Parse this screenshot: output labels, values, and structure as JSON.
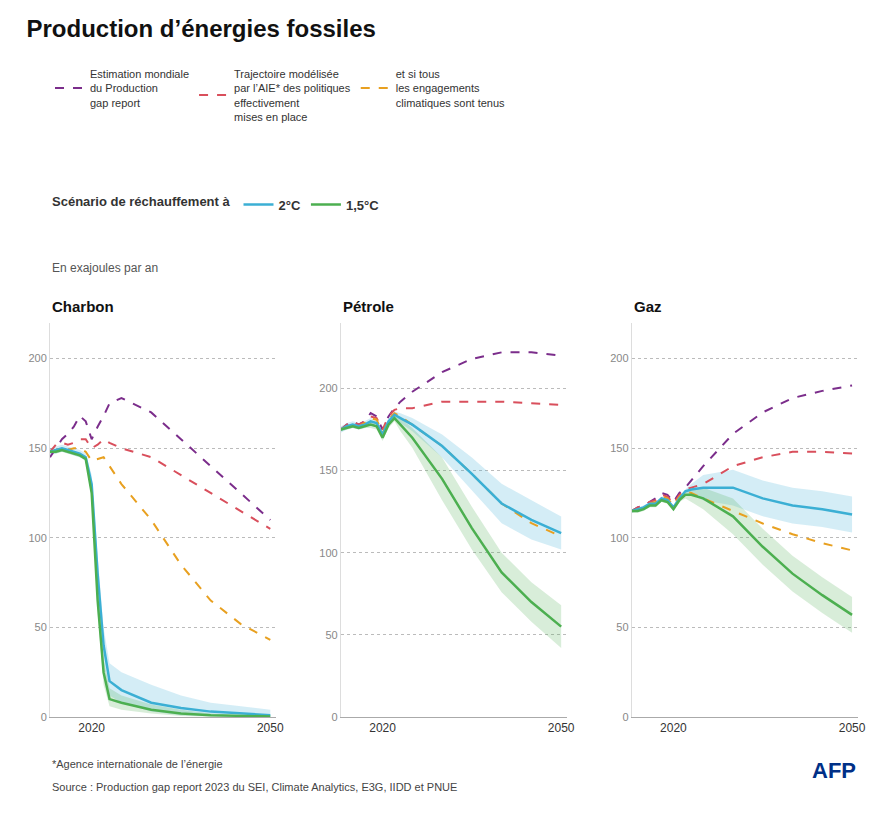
{
  "title": "Production d’énergies fossiles",
  "subtitle": "Scénario de réchauffement à",
  "ylabel": "En exajoules par an",
  "annotations": [
    {
      "text": "*Agence internationale de l’énergie"
    },
    {
      "text": "Source : Production gap report 2023 du SEI, Climate Analytics, E3G, IIDD et PNUE"
    },
    {
      "text": "AFP",
      "color": "#003087"
    }
  ],
  "chart_data": [
    {
      "type": "line",
      "title": "Charbon",
      "x": [
        2013,
        2014,
        2015,
        2016,
        2017,
        2018,
        2019,
        2020,
        2021,
        2022,
        2023,
        2025,
        2030,
        2035,
        2040,
        2045,
        2050
      ],
      "xlim": [
        2013,
        2051
      ],
      "xticks": [
        2020,
        2050
      ],
      "ylim": [
        0,
        220
      ],
      "yticks": [
        0,
        50,
        100,
        150,
        200
      ],
      "grid": true,
      "series": [
        {
          "name": "Estimation mondiale\ndu Production\ngap report",
          "color": "#7B2D8B",
          "line_style": "dashed",
          "values": [
            145,
            150,
            155,
            158,
            162,
            168,
            165,
            155,
            162,
            168,
            175,
            178,
            170,
            155,
            140,
            125,
            110
          ]
        },
        {
          "name": "Trajectoire modélisée\npar l’AIE* des politiques\neffectivement\nmises en place",
          "color": "#D94F5C",
          "line_style": "dashed",
          "values": [
            148,
            152,
            153,
            152,
            153,
            155,
            155,
            150,
            152,
            155,
            153,
            150,
            145,
            135,
            125,
            115,
            105
          ]
        },
        {
          "name": "et si tous\nles engagements\nclimatiques sont tenus",
          "color": "#E8A020",
          "line_style": "dashed",
          "values": [
            148,
            149,
            150,
            149,
            150,
            150,
            148,
            143,
            144,
            145,
            140,
            130,
            110,
            85,
            65,
            52,
            43
          ]
        },
        {
          "name": "2°C",
          "color": "#3BAFD4",
          "line_style": "solid",
          "values": [
            148,
            149,
            150,
            149,
            148,
            147,
            145,
            130,
            80,
            40,
            20,
            15,
            8,
            5,
            3,
            2,
            1
          ],
          "lower": [
            146,
            147,
            148,
            147,
            146,
            145,
            143,
            125,
            70,
            30,
            12,
            8,
            3,
            1,
            0.5,
            0.2,
            0.1
          ],
          "upper": [
            150,
            151,
            152,
            151,
            150,
            149,
            147,
            135,
            90,
            50,
            30,
            25,
            18,
            12,
            8,
            6,
            4
          ]
        },
        {
          "name": "1,5°C",
          "color": "#4CAF50",
          "line_style": "solid",
          "values": [
            148,
            148,
            149,
            148,
            147,
            146,
            144,
            125,
            65,
            25,
            10,
            8,
            4,
            2,
            1,
            0.5,
            0.3
          ],
          "lower": [
            147,
            147,
            148,
            147,
            146,
            145,
            143,
            122,
            58,
            18,
            6,
            4,
            2,
            0.5,
            0.2,
            0.1,
            0.05
          ],
          "upper": [
            149,
            149,
            150,
            149,
            148,
            147,
            145,
            128,
            70,
            32,
            16,
            12,
            7,
            4,
            2,
            1,
            0.5
          ]
        }
      ]
    },
    {
      "type": "line",
      "title": "Pétrole",
      "x": [
        2013,
        2014,
        2015,
        2016,
        2017,
        2018,
        2019,
        2020,
        2021,
        2022,
        2023,
        2025,
        2030,
        2035,
        2040,
        2045,
        2050
      ],
      "xlim": [
        2013,
        2051
      ],
      "xticks": [
        2020,
        2050
      ],
      "ylim": [
        0,
        240
      ],
      "yticks": [
        0,
        50,
        100,
        150,
        200
      ],
      "grid": true,
      "series": [
        {
          "name": "Estimation mondiale\ndu Production\ngap report",
          "color": "#7B2D8B",
          "line_style": "dashed",
          "values": [
            175,
            178,
            180,
            178,
            180,
            185,
            183,
            175,
            183,
            188,
            192,
            198,
            210,
            218,
            222,
            222,
            220
          ]
        },
        {
          "name": "Trajectoire modélisée\npar l’AIE* des politiques\neffectivement\nmises en place",
          "color": "#D94F5C",
          "line_style": "dashed",
          "values": [
            175,
            178,
            180,
            178,
            180,
            183,
            182,
            175,
            183,
            187,
            188,
            188,
            192,
            192,
            192,
            191,
            190
          ]
        },
        {
          "name": "et si tous\nles engagements\nclimatiques sont tenus",
          "color": "#E8A020",
          "line_style": "dashed",
          "values": [
            175,
            177,
            178,
            177,
            179,
            182,
            181,
            173,
            181,
            185,
            183,
            178,
            165,
            148,
            130,
            118,
            110
          ]
        },
        {
          "name": "2°C",
          "color": "#3BAFD4",
          "line_style": "solid",
          "values": [
            175,
            177,
            178,
            177,
            178,
            180,
            179,
            172,
            180,
            184,
            182,
            178,
            165,
            148,
            130,
            120,
            112
          ],
          "lower": [
            173,
            175,
            176,
            175,
            176,
            178,
            177,
            170,
            178,
            182,
            179,
            174,
            158,
            138,
            118,
            108,
            102
          ],
          "upper": [
            177,
            179,
            180,
            179,
            180,
            182,
            181,
            174,
            182,
            186,
            185,
            182,
            172,
            158,
            142,
            132,
            122
          ]
        },
        {
          "name": "1,5°C",
          "color": "#4CAF50",
          "line_style": "solid",
          "values": [
            175,
            176,
            177,
            176,
            177,
            178,
            177,
            170,
            178,
            182,
            178,
            170,
            145,
            115,
            88,
            70,
            55
          ],
          "lower": [
            174,
            175,
            176,
            175,
            176,
            176,
            175,
            168,
            176,
            180,
            174,
            164,
            132,
            102,
            76,
            58,
            42
          ],
          "upper": [
            176,
            177,
            178,
            177,
            178,
            180,
            179,
            172,
            180,
            184,
            182,
            176,
            158,
            128,
            100,
            82,
            68
          ]
        }
      ]
    },
    {
      "type": "line",
      "title": "Gaz",
      "x": [
        2013,
        2014,
        2015,
        2016,
        2017,
        2018,
        2019,
        2020,
        2021,
        2022,
        2023,
        2025,
        2030,
        2035,
        2040,
        2045,
        2050
      ],
      "xlim": [
        2013,
        2051
      ],
      "xticks": [
        2020,
        2050
      ],
      "ylim": [
        0,
        220
      ],
      "yticks": [
        0,
        50,
        100,
        150,
        200
      ],
      "grid": true,
      "series": [
        {
          "name": "Estimation mondiale\ndu Production\ngap report",
          "color": "#7B2D8B",
          "line_style": "dashed",
          "values": [
            115,
            117,
            118,
            120,
            122,
            125,
            124,
            120,
            125,
            128,
            132,
            140,
            158,
            170,
            178,
            182,
            185
          ]
        },
        {
          "name": "Trajectoire modélisée\npar l’AIE* des politiques\neffectivement\nmises en place",
          "color": "#D94F5C",
          "line_style": "dashed",
          "values": [
            115,
            117,
            118,
            120,
            121,
            124,
            123,
            119,
            124,
            127,
            128,
            130,
            140,
            145,
            148,
            148,
            147
          ]
        },
        {
          "name": "et si tous\nles engagements\nclimatiques sont tenus",
          "color": "#E8A020",
          "line_style": "dashed",
          "values": [
            115,
            116,
            117,
            119,
            120,
            123,
            122,
            118,
            123,
            126,
            125,
            122,
            115,
            108,
            102,
            97,
            93
          ]
        },
        {
          "name": "2°C",
          "color": "#3BAFD4",
          "line_style": "solid",
          "values": [
            115,
            116,
            117,
            119,
            119,
            122,
            121,
            117,
            122,
            126,
            127,
            128,
            128,
            122,
            118,
            116,
            113
          ],
          "lower": [
            114,
            115,
            116,
            118,
            118,
            121,
            120,
            116,
            121,
            125,
            124,
            121,
            118,
            112,
            108,
            106,
            103
          ],
          "upper": [
            116,
            117,
            118,
            120,
            120,
            123,
            122,
            118,
            123,
            127,
            130,
            135,
            138,
            132,
            128,
            126,
            123
          ]
        },
        {
          "name": "1,5°C",
          "color": "#4CAF50",
          "line_style": "solid",
          "values": [
            115,
            115,
            116,
            118,
            118,
            121,
            120,
            116,
            121,
            124,
            124,
            122,
            112,
            95,
            80,
            68,
            57
          ],
          "lower": [
            114,
            114,
            115,
            117,
            117,
            120,
            119,
            115,
            120,
            122,
            120,
            116,
            102,
            85,
            70,
            58,
            47
          ],
          "upper": [
            115,
            116,
            117,
            119,
            119,
            122,
            121,
            117,
            122,
            126,
            128,
            128,
            122,
            105,
            90,
            78,
            67
          ]
        }
      ]
    }
  ]
}
